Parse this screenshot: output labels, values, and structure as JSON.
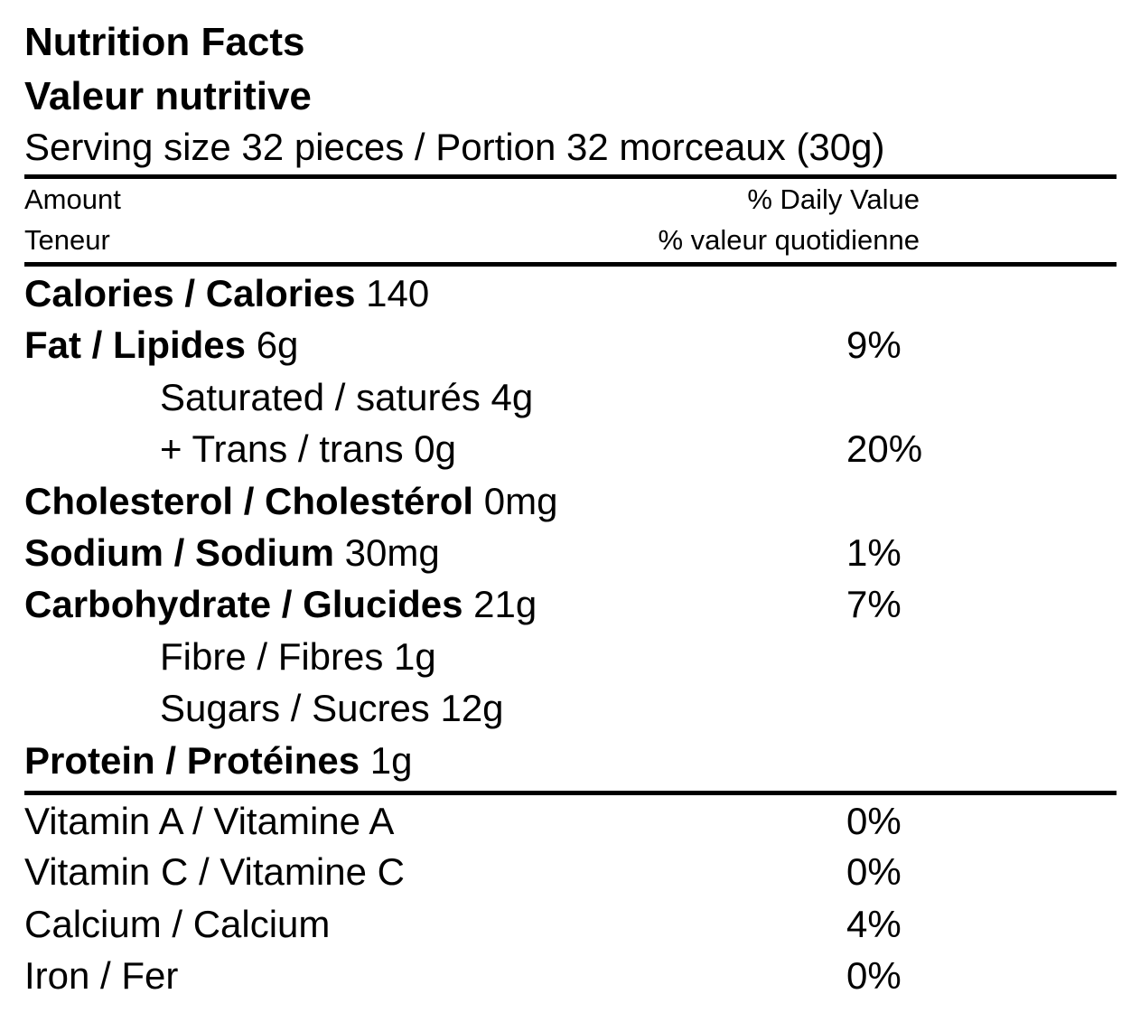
{
  "header": {
    "title_en": "Nutrition Facts",
    "title_fr": "Valeur nutritive",
    "serving": "Serving size 32 pieces / Portion 32 morceaux (30g)"
  },
  "columns": {
    "amount_en": "Amount",
    "amount_fr": "Teneur",
    "dv_en": "% Daily Value",
    "dv_fr": "% valeur quotidienne"
  },
  "nutrients": [
    {
      "label": "Calories / Calories",
      "amount": "140",
      "dv": ""
    },
    {
      "label": "Fat / Lipides",
      "amount": "6g",
      "dv": "9%"
    },
    {
      "label": "Saturated / saturés 4g",
      "amount": "",
      "dv": ""
    },
    {
      "label": "+ Trans / trans 0g",
      "amount": "",
      "dv": "20%"
    },
    {
      "label": "Cholesterol / Cholestérol",
      "amount": "0mg",
      "dv": ""
    },
    {
      "label": "Sodium / Sodium",
      "amount": "30mg",
      "dv": "1%"
    },
    {
      "label": "Carbohydrate / Glucides",
      "amount": "21g",
      "dv": "7%"
    },
    {
      "label": "Fibre / Fibres 1g",
      "amount": "",
      "dv": ""
    },
    {
      "label": "Sugars / Sucres 12g",
      "amount": "",
      "dv": ""
    },
    {
      "label": "Protein / Protéines",
      "amount": "1g",
      "dv": ""
    }
  ],
  "vitamins": [
    {
      "label": "Vitamin A / Vitamine A",
      "dv": "0%"
    },
    {
      "label": "Vitamin C / Vitamine C",
      "dv": "0%"
    },
    {
      "label": "Calcium / Calcium",
      "dv": "4%"
    },
    {
      "label": "Iron / Fer",
      "dv": "0%"
    }
  ]
}
